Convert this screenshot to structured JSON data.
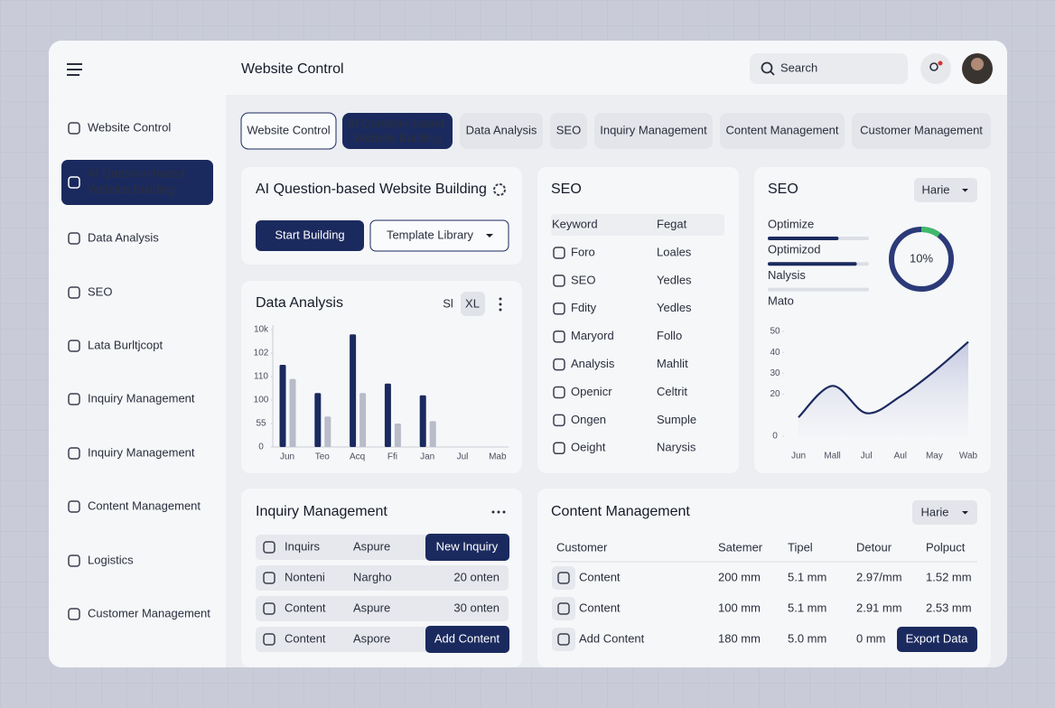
{
  "header": {
    "title": "Website Control",
    "search_placeholder": "Search"
  },
  "sidebar": {
    "active": 1,
    "items": [
      "Website Control",
      "AI Question-based Website Building",
      "Data Analysis",
      "SEO",
      "Lata Burltjcopt",
      "Inquiry Management",
      "Inquiry Management",
      "Content Management",
      "Logistics",
      "Customer Management"
    ]
  },
  "tabs": {
    "active": 1,
    "outlined": 0,
    "items": [
      "Website Control",
      "AI Question-based Website Building",
      "Data Analysis",
      "SEO",
      "Inquiry Management",
      "Content Management",
      "Customer Management"
    ]
  },
  "ai_panel": {
    "title": "AI Question-based Website Building",
    "primary_button": "Start Building",
    "secondary_button": "Template Library"
  },
  "data_analysis": {
    "title": "Data Analysis",
    "size_options": [
      "Sl",
      "XL"
    ],
    "chart_data": {
      "type": "bar",
      "categories": [
        "Jun",
        "Teo",
        "Acq",
        "Ffi",
        "Jan",
        "Jul",
        "Mab"
      ],
      "series": [
        {
          "color": "#1b2a5e",
          "values": [
            3.5,
            2.3,
            4.8,
            2.7,
            2.2,
            null,
            null
          ]
        },
        {
          "color": "#b8bbc8",
          "values": [
            2.9,
            1.3,
            2.3,
            1.0,
            1.1,
            null,
            null
          ]
        }
      ],
      "ylim": [
        0,
        5
      ],
      "yticks": [
        0,
        {
          "value": 1,
          "label": "55"
        },
        {
          "value": 2,
          "label": "100"
        },
        {
          "value": 3,
          "label": "110"
        },
        {
          "value": 4,
          "label": "102"
        },
        {
          "value": 5,
          "label": "10k"
        }
      ]
    }
  },
  "seo_table": {
    "title": "SEO",
    "columns": [
      "Keyword",
      "Fegat"
    ],
    "rows": [
      [
        "Foro",
        "Loales"
      ],
      [
        "SEO",
        "Yedles"
      ],
      [
        "Fdity",
        "Yedles"
      ],
      [
        "Maryord",
        "Follo"
      ],
      [
        "Analysis",
        "Mahlit"
      ],
      [
        "Openicr",
        "Celtrit"
      ],
      [
        "Ongen",
        "Sumple"
      ],
      [
        "Oeight",
        "Narysis"
      ]
    ]
  },
  "seo_panel": {
    "title": "SEO",
    "dropdown": "Harie",
    "progress": {
      "labels": [
        "Optimize",
        "Optimizod",
        "Nalysis",
        "Mato"
      ],
      "values": [
        70,
        88,
        0,
        null
      ]
    },
    "donut": {
      "values": [
        10
      ],
      "value_labels": [
        "10%"
      ]
    },
    "chart_data": {
      "type": "line",
      "categories": [
        "Jun",
        "Mall",
        "Jul",
        "Aul",
        "May",
        "Wab"
      ],
      "series": [
        {
          "color": "#1b2a5e",
          "values": [
            9,
            24,
            11,
            19,
            31,
            45
          ]
        }
      ],
      "ylim": [
        0,
        50
      ],
      "yticks": [
        0,
        20,
        30,
        40,
        50
      ]
    }
  },
  "inquiry": {
    "title": "Inquiry Management",
    "rows": [
      [
        "Inquirs",
        "Aspure",
        "New Inquiry"
      ],
      [
        "Nonteni",
        "Nargho",
        "20 onten"
      ],
      [
        "Content",
        "Aspure",
        "30 onten"
      ],
      [
        "Content",
        "Aspore",
        "Add Content"
      ]
    ],
    "button_cells": [
      [
        0,
        2
      ],
      [
        3,
        2
      ]
    ]
  },
  "content": {
    "title": "Content Management",
    "dropdown": "Harie",
    "columns": [
      "Customer",
      "Satemer",
      "Tipel",
      "Detour",
      "Polpuct"
    ],
    "rows": [
      [
        "Content",
        "200 mm",
        "5.1 mm",
        "2.97/mm",
        "1.52 mm"
      ],
      [
        "Content",
        "100 mm",
        "5.1 mm",
        "2.91 mm",
        "2.53 mm"
      ],
      [
        "Add Content",
        "180 mm",
        "5.0 mm",
        "0 mm",
        "Export Data"
      ]
    ],
    "button_cells": [
      [
        2,
        4
      ]
    ]
  }
}
